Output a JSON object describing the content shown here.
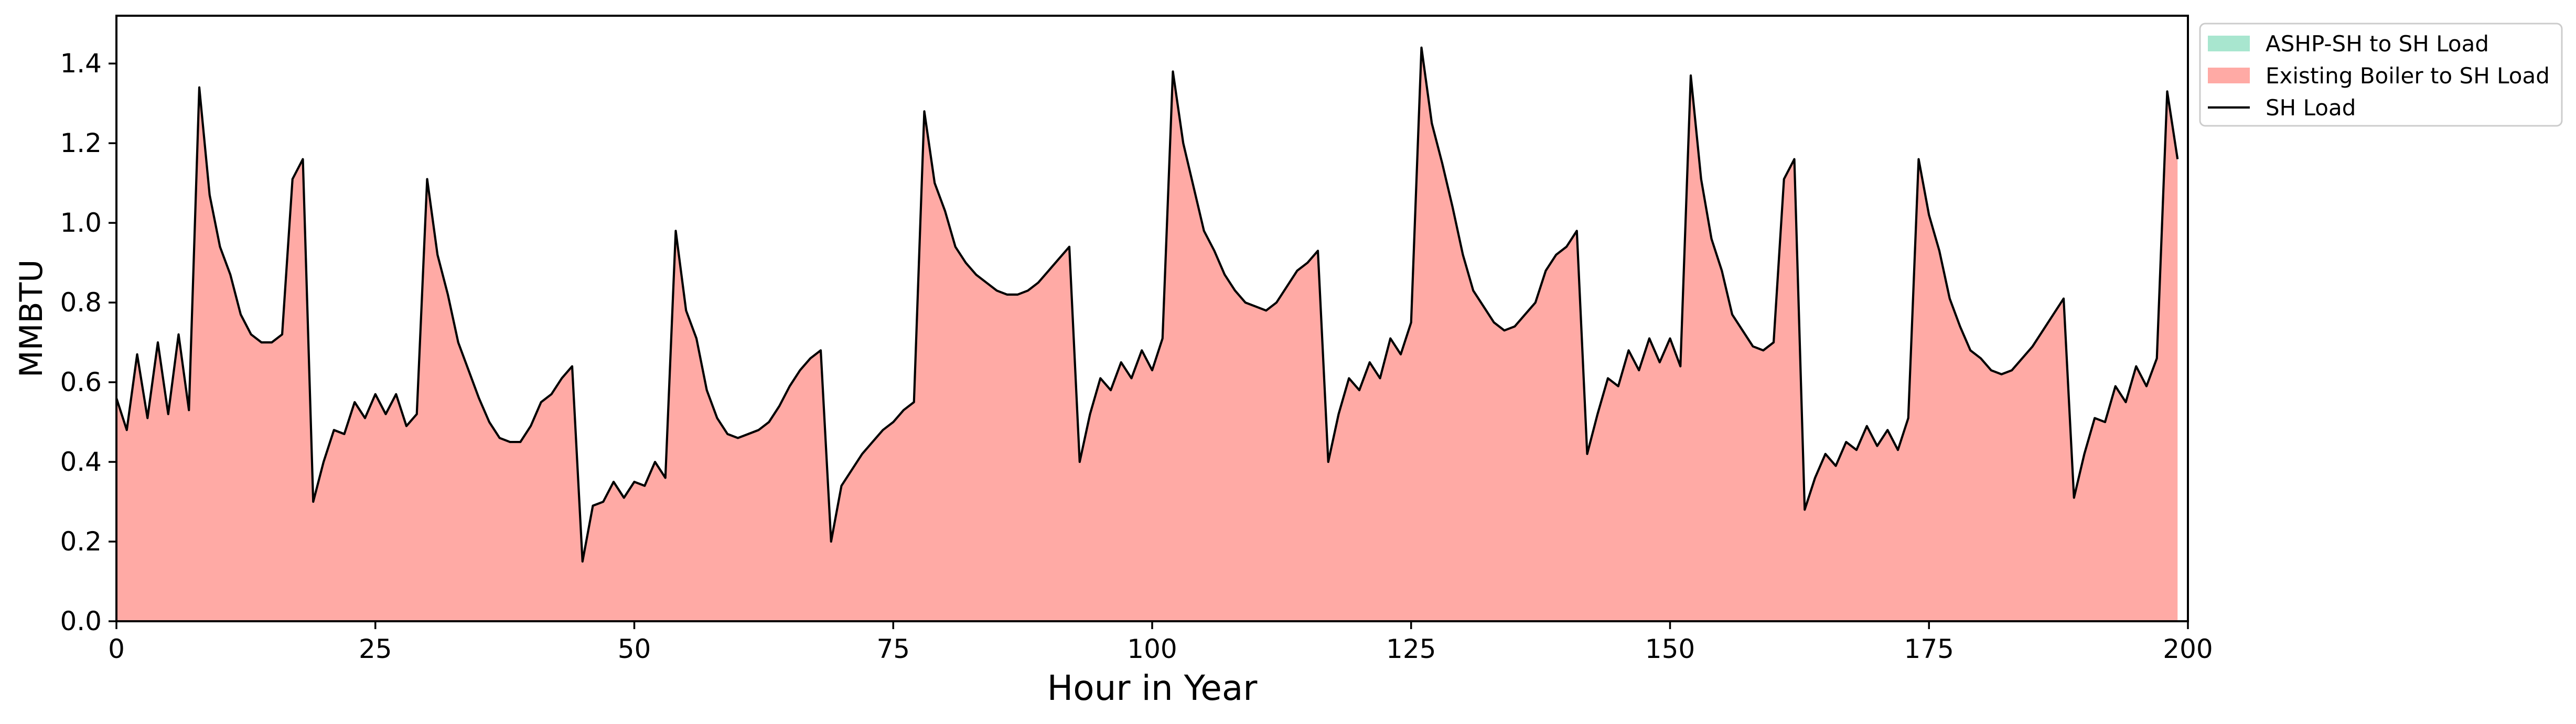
{
  "chart_data": {
    "type": "area",
    "xlabel": "Hour in Year",
    "ylabel": "MMBTU",
    "xlim": [
      0,
      200
    ],
    "ylim": [
      0,
      1.52
    ],
    "xticks": [
      0,
      25,
      50,
      75,
      100,
      125,
      150,
      175,
      200
    ],
    "yticks": [
      0.0,
      0.2,
      0.4,
      0.6,
      0.8,
      1.0,
      1.2,
      1.4
    ],
    "grid": false,
    "legend_position": "outside-top-right",
    "legend": [
      {
        "label": "ASHP-SH to SH Load",
        "kind": "patch",
        "color": "#a8e6cf"
      },
      {
        "label": "Existing Boiler to SH Load",
        "kind": "patch",
        "color": "#ffaaa5"
      },
      {
        "label": "SH Load",
        "kind": "line",
        "color": "#000000"
      }
    ],
    "x": [
      0,
      1,
      2,
      3,
      4,
      5,
      6,
      7,
      8,
      9,
      10,
      11,
      12,
      13,
      14,
      15,
      16,
      17,
      18,
      19,
      20,
      21,
      22,
      23,
      24,
      25,
      26,
      27,
      28,
      29,
      30,
      31,
      32,
      33,
      34,
      35,
      36,
      37,
      38,
      39,
      40,
      41,
      42,
      43,
      44,
      45,
      46,
      47,
      48,
      49,
      50,
      51,
      52,
      53,
      54,
      55,
      56,
      57,
      58,
      59,
      60,
      61,
      62,
      63,
      64,
      65,
      66,
      67,
      68,
      69,
      70,
      71,
      72,
      73,
      74,
      75,
      76,
      77,
      78,
      79,
      80,
      81,
      82,
      83,
      84,
      85,
      86,
      87,
      88,
      89,
      90,
      91,
      92,
      93,
      94,
      95,
      96,
      97,
      98,
      99,
      100,
      101,
      102,
      103,
      104,
      105,
      106,
      107,
      108,
      109,
      110,
      111,
      112,
      113,
      114,
      115,
      116,
      117,
      118,
      119,
      120,
      121,
      122,
      123,
      124,
      125,
      126,
      127,
      128,
      129,
      130,
      131,
      132,
      133,
      134,
      135,
      136,
      137,
      138,
      139,
      140,
      141,
      142,
      143,
      144,
      145,
      146,
      147,
      148,
      149,
      150,
      151,
      152,
      153,
      154,
      155,
      156,
      157,
      158,
      159,
      160,
      161,
      162,
      163,
      164,
      165,
      166,
      167,
      168,
      169,
      170,
      171,
      172,
      173,
      174,
      175,
      176,
      177,
      178,
      179,
      180,
      181,
      182,
      183,
      184,
      185,
      186,
      187,
      188,
      189,
      190,
      191,
      192,
      193,
      194,
      195,
      196,
      197,
      198,
      199
    ],
    "series": [
      {
        "name": "ASHP-SH to SH Load",
        "color": "#a8e6cf",
        "values": [
          0,
          0,
          0,
          0,
          0,
          0,
          0,
          0,
          0,
          0,
          0,
          0,
          0,
          0,
          0,
          0,
          0,
          0,
          0,
          0,
          0,
          0,
          0,
          0,
          0,
          0,
          0,
          0,
          0,
          0,
          0,
          0,
          0,
          0,
          0,
          0,
          0,
          0,
          0,
          0,
          0,
          0,
          0,
          0,
          0,
          0,
          0,
          0,
          0,
          0,
          0,
          0,
          0,
          0,
          0,
          0,
          0,
          0,
          0,
          0,
          0,
          0,
          0,
          0,
          0,
          0,
          0,
          0,
          0,
          0,
          0,
          0,
          0,
          0,
          0,
          0,
          0,
          0,
          0,
          0,
          0,
          0,
          0,
          0,
          0,
          0,
          0,
          0,
          0,
          0,
          0,
          0,
          0,
          0,
          0,
          0,
          0,
          0,
          0,
          0,
          0,
          0,
          0,
          0,
          0,
          0,
          0,
          0,
          0,
          0,
          0,
          0,
          0,
          0,
          0,
          0,
          0,
          0,
          0,
          0,
          0,
          0,
          0,
          0,
          0,
          0,
          0,
          0,
          0,
          0,
          0,
          0,
          0,
          0,
          0,
          0,
          0,
          0,
          0,
          0,
          0,
          0,
          0,
          0,
          0,
          0,
          0,
          0,
          0,
          0,
          0,
          0,
          0,
          0,
          0,
          0,
          0,
          0,
          0,
          0,
          0,
          0,
          0,
          0,
          0,
          0,
          0,
          0,
          0,
          0,
          0,
          0,
          0,
          0,
          0,
          0,
          0,
          0,
          0,
          0,
          0,
          0,
          0,
          0,
          0,
          0,
          0,
          0,
          0,
          0,
          0,
          0,
          0,
          0,
          0,
          0,
          0,
          0,
          0,
          0
        ]
      },
      {
        "name": "Existing Boiler to SH Load",
        "color": "#ffaaa5",
        "values": [
          0.56,
          0.48,
          0.67,
          0.51,
          0.7,
          0.52,
          0.72,
          0.53,
          1.34,
          1.07,
          0.94,
          0.87,
          0.77,
          0.72,
          0.7,
          0.7,
          0.72,
          1.11,
          1.16,
          0.3,
          0.4,
          0.48,
          0.47,
          0.55,
          0.51,
          0.57,
          0.52,
          0.57,
          0.49,
          0.52,
          1.11,
          0.92,
          0.82,
          0.7,
          0.63,
          0.56,
          0.5,
          0.46,
          0.45,
          0.45,
          0.49,
          0.55,
          0.57,
          0.61,
          0.64,
          0.15,
          0.29,
          0.3,
          0.35,
          0.31,
          0.35,
          0.34,
          0.4,
          0.36,
          0.98,
          0.78,
          0.71,
          0.58,
          0.51,
          0.47,
          0.46,
          0.47,
          0.48,
          0.5,
          0.54,
          0.59,
          0.63,
          0.66,
          0.68,
          0.2,
          0.34,
          0.38,
          0.42,
          0.45,
          0.48,
          0.5,
          0.53,
          0.55,
          1.28,
          1.1,
          1.03,
          0.94,
          0.9,
          0.87,
          0.85,
          0.83,
          0.82,
          0.82,
          0.83,
          0.85,
          0.88,
          0.91,
          0.94,
          0.4,
          0.52,
          0.61,
          0.58,
          0.65,
          0.61,
          0.68,
          0.63,
          0.71,
          1.38,
          1.2,
          1.09,
          0.98,
          0.93,
          0.87,
          0.83,
          0.8,
          0.79,
          0.78,
          0.8,
          0.84,
          0.88,
          0.9,
          0.93,
          0.4,
          0.52,
          0.61,
          0.58,
          0.65,
          0.61,
          0.71,
          0.67,
          0.75,
          1.44,
          1.25,
          1.15,
          1.04,
          0.92,
          0.83,
          0.79,
          0.75,
          0.73,
          0.74,
          0.77,
          0.8,
          0.88,
          0.92,
          0.94,
          0.98,
          0.42,
          0.52,
          0.61,
          0.59,
          0.68,
          0.63,
          0.71,
          0.65,
          0.71,
          0.64,
          1.37,
          1.11,
          0.96,
          0.88,
          0.77,
          0.73,
          0.69,
          0.68,
          0.7,
          1.11,
          1.16,
          0.28,
          0.36,
          0.42,
          0.39,
          0.45,
          0.43,
          0.49,
          0.44,
          0.48,
          0.43,
          0.51,
          1.16,
          1.02,
          0.93,
          0.81,
          0.74,
          0.68,
          0.66,
          0.63,
          0.62,
          0.63,
          0.66,
          0.69,
          0.73,
          0.77,
          0.81,
          0.31,
          0.42,
          0.51,
          0.5,
          0.59,
          0.55,
          0.64,
          0.59,
          0.66,
          1.33,
          1.16
        ]
      },
      {
        "name": "SH Load",
        "color": "#000000",
        "values": [
          0.56,
          0.48,
          0.67,
          0.51,
          0.7,
          0.52,
          0.72,
          0.53,
          1.34,
          1.07,
          0.94,
          0.87,
          0.77,
          0.72,
          0.7,
          0.7,
          0.72,
          1.11,
          1.16,
          0.3,
          0.4,
          0.48,
          0.47,
          0.55,
          0.51,
          0.57,
          0.52,
          0.57,
          0.49,
          0.52,
          1.11,
          0.92,
          0.82,
          0.7,
          0.63,
          0.56,
          0.5,
          0.46,
          0.45,
          0.45,
          0.49,
          0.55,
          0.57,
          0.61,
          0.64,
          0.15,
          0.29,
          0.3,
          0.35,
          0.31,
          0.35,
          0.34,
          0.4,
          0.36,
          0.98,
          0.78,
          0.71,
          0.58,
          0.51,
          0.47,
          0.46,
          0.47,
          0.48,
          0.5,
          0.54,
          0.59,
          0.63,
          0.66,
          0.68,
          0.2,
          0.34,
          0.38,
          0.42,
          0.45,
          0.48,
          0.5,
          0.53,
          0.55,
          1.28,
          1.1,
          1.03,
          0.94,
          0.9,
          0.87,
          0.85,
          0.83,
          0.82,
          0.82,
          0.83,
          0.85,
          0.88,
          0.91,
          0.94,
          0.4,
          0.52,
          0.61,
          0.58,
          0.65,
          0.61,
          0.68,
          0.63,
          0.71,
          1.38,
          1.2,
          1.09,
          0.98,
          0.93,
          0.87,
          0.83,
          0.8,
          0.79,
          0.78,
          0.8,
          0.84,
          0.88,
          0.9,
          0.93,
          0.4,
          0.52,
          0.61,
          0.58,
          0.65,
          0.61,
          0.71,
          0.67,
          0.75,
          1.44,
          1.25,
          1.15,
          1.04,
          0.92,
          0.83,
          0.79,
          0.75,
          0.73,
          0.74,
          0.77,
          0.8,
          0.88,
          0.92,
          0.94,
          0.98,
          0.42,
          0.52,
          0.61,
          0.59,
          0.68,
          0.63,
          0.71,
          0.65,
          0.71,
          0.64,
          1.37,
          1.11,
          0.96,
          0.88,
          0.77,
          0.73,
          0.69,
          0.68,
          0.7,
          1.11,
          1.16,
          0.28,
          0.36,
          0.42,
          0.39,
          0.45,
          0.43,
          0.49,
          0.44,
          0.48,
          0.43,
          0.51,
          1.16,
          1.02,
          0.93,
          0.81,
          0.74,
          0.68,
          0.66,
          0.63,
          0.62,
          0.63,
          0.66,
          0.69,
          0.73,
          0.77,
          0.81,
          0.31,
          0.42,
          0.51,
          0.5,
          0.59,
          0.55,
          0.64,
          0.59,
          0.66,
          1.33,
          1.16
        ]
      }
    ]
  }
}
